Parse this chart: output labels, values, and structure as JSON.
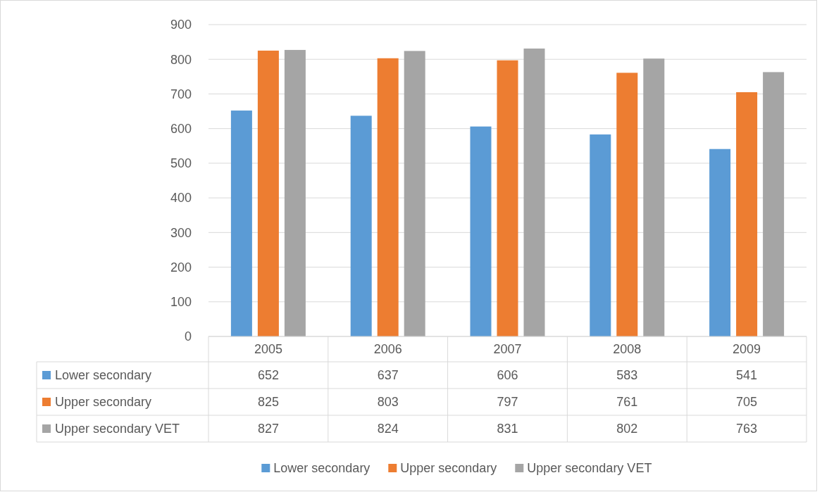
{
  "chart_data": {
    "type": "bar",
    "categories": [
      "2005",
      "2006",
      "2007",
      "2008",
      "2009"
    ],
    "series": [
      {
        "name": "Lower secondary",
        "color": "#5b9bd5",
        "values": [
          652,
          637,
          606,
          583,
          541
        ]
      },
      {
        "name": "Upper secondary",
        "color": "#ed7d31",
        "values": [
          825,
          803,
          797,
          761,
          705
        ]
      },
      {
        "name": "Upper secondary VET",
        "color": "#a5a5a5",
        "values": [
          827,
          824,
          831,
          802,
          763
        ]
      }
    ],
    "ylim": [
      0,
      900
    ],
    "yticks": [
      0,
      100,
      200,
      300,
      400,
      500,
      600,
      700,
      800,
      900
    ],
    "grid": "y",
    "legend": "bottom",
    "data_labels": true
  }
}
